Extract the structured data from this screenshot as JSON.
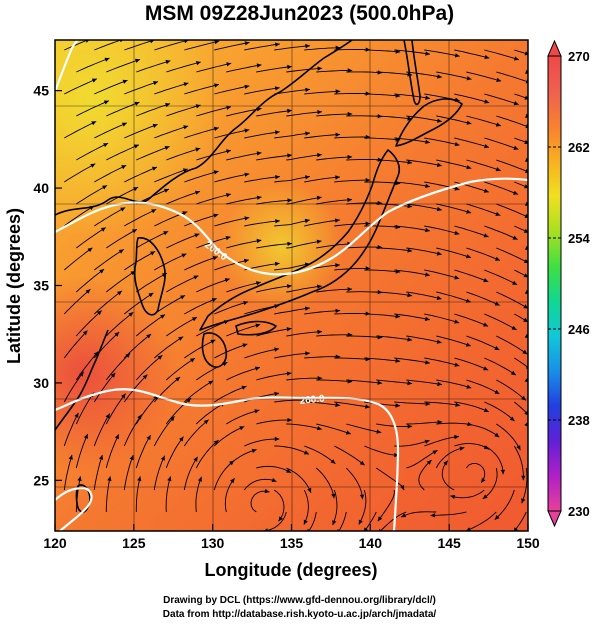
{
  "title": "MSM 09Z28Jun2023 (500.0hPa)",
  "x_axis": {
    "label": "Longitude (degrees)",
    "ticks": [
      "120",
      "125",
      "130",
      "135",
      "140",
      "145",
      "150"
    ],
    "range": [
      120,
      150
    ]
  },
  "y_axis": {
    "label": "Latitude  (degrees)",
    "ticks": [
      "25",
      "30",
      "35",
      "40",
      "45"
    ],
    "range": [
      22.4,
      47.6
    ]
  },
  "colorbar": {
    "ticks": [
      "270",
      "262",
      "254",
      "246",
      "238",
      "230"
    ],
    "range": [
      230,
      270
    ],
    "colors": [
      "#e8409a",
      "#b020c8",
      "#6020d8",
      "#2040e0",
      "#1890e8",
      "#10c8d8",
      "#10d890",
      "#40e040",
      "#a8e020",
      "#f0e020",
      "#f8b020",
      "#f88030",
      "#f06050",
      "#f04848"
    ]
  },
  "contours": [
    {
      "label": "260.0",
      "color": "#ffffff"
    },
    {
      "label": "260.0",
      "color": "#ffffff"
    }
  ],
  "credits": {
    "line1": "Drawing by DCL (https://www.gfd-dennou.org/library/dcl/)",
    "line2": "Data from http://database.rish.kyoto-u.ac.jp/arch/jmadata/"
  }
}
